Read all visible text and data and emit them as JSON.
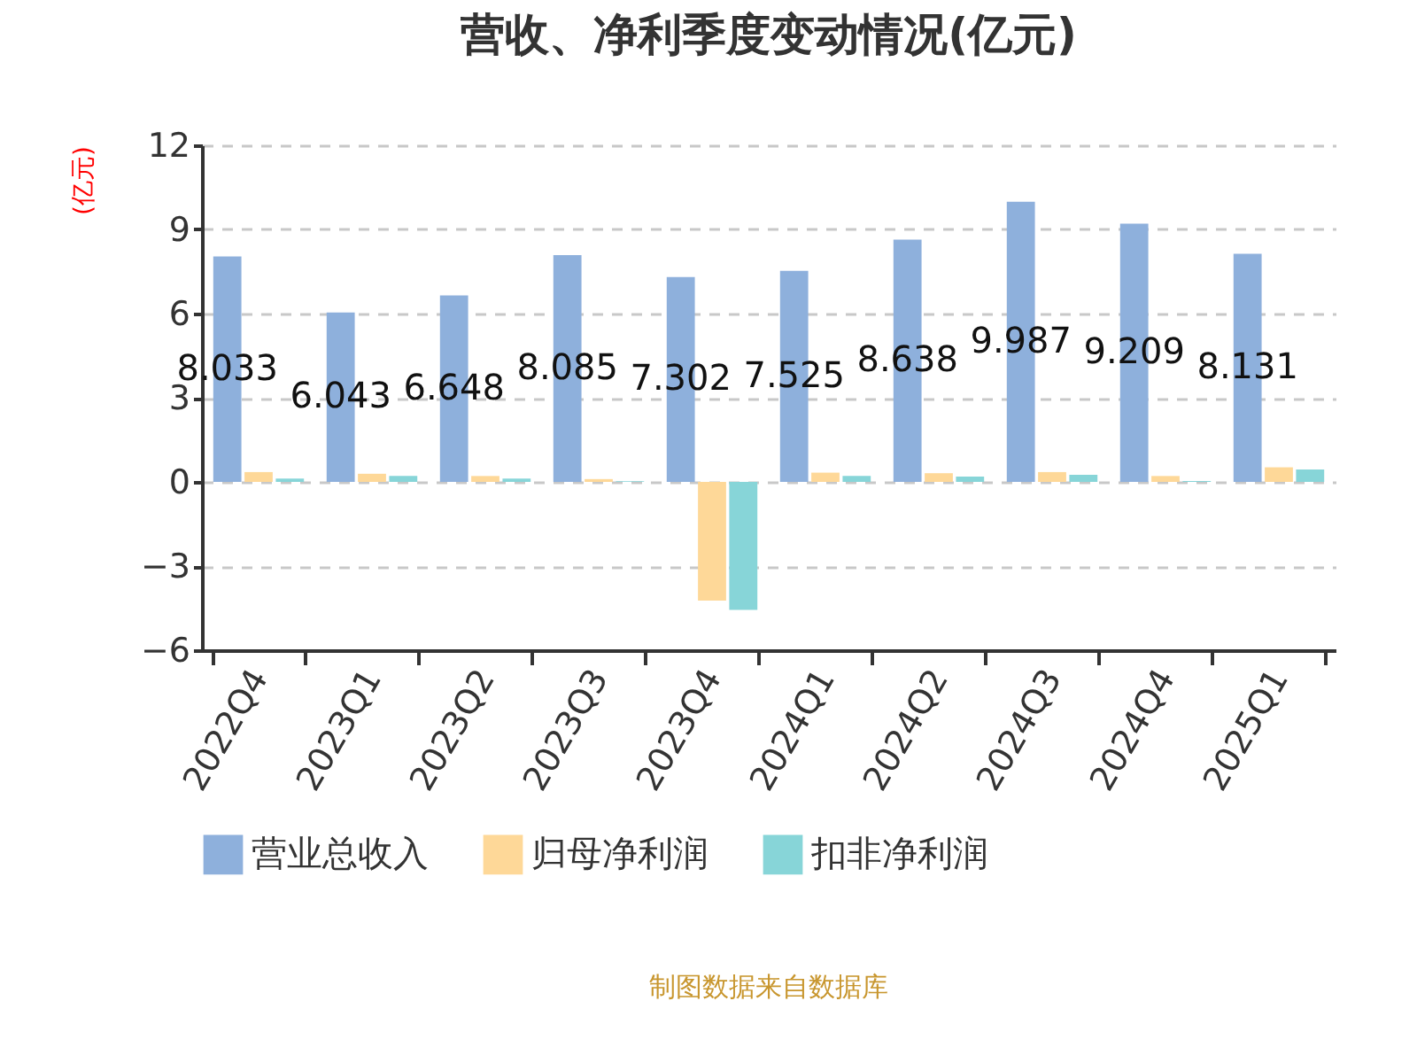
{
  "chart_data": {
    "type": "bar",
    "title": "营收、净利季度变动情况(亿元)",
    "ylabel": "(亿元)",
    "categories": [
      "2022Q4",
      "2023Q1",
      "2023Q2",
      "2023Q3",
      "2023Q4",
      "2024Q1",
      "2024Q2",
      "2024Q3",
      "2024Q4",
      "2025Q1"
    ],
    "series": [
      {
        "name": "营业总收入",
        "color": "#8eb0dc",
        "values": [
          8.033,
          6.043,
          6.648,
          8.085,
          7.302,
          7.525,
          8.638,
          9.987,
          9.209,
          8.131
        ],
        "value_labels": [
          "8.033",
          "6.043",
          "6.648",
          "8.085",
          "7.302",
          "7.525",
          "8.638",
          "9.987",
          "9.209",
          "8.131"
        ]
      },
      {
        "name": "归母净利润",
        "color": "#fed898",
        "values": [
          0.35,
          0.29,
          0.21,
          0.1,
          -4.23,
          0.33,
          0.31,
          0.35,
          0.21,
          0.52
        ]
      },
      {
        "name": "扣非净利润",
        "color": "#87d5d8",
        "values": [
          0.12,
          0.21,
          0.12,
          0.02,
          -4.56,
          0.21,
          0.19,
          0.25,
          0.03,
          0.44
        ]
      }
    ],
    "ylim": [
      -6,
      12
    ],
    "yticks": [
      -6,
      -3,
      0,
      3,
      6,
      9,
      12
    ],
    "grid": "y",
    "legend": "bottom",
    "annotations": [
      "制图数据来自数据库"
    ]
  }
}
